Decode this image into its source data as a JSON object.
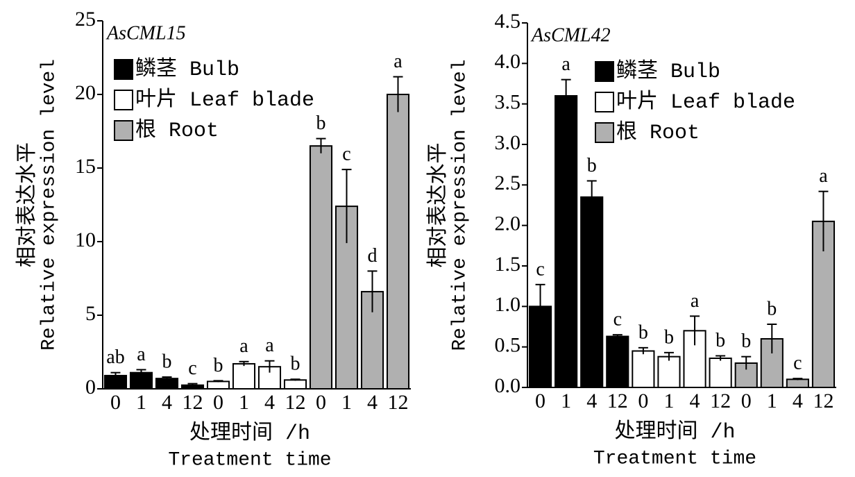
{
  "chart_data": [
    {
      "type": "bar",
      "title": "AsCML15",
      "ylabel": [
        "相对表达水平",
        "Relative expression level"
      ],
      "xlabel": [
        "处理时间 /h",
        "Treatment time"
      ],
      "categories": [
        "0",
        "1",
        "4",
        "12"
      ],
      "series": [
        {
          "name": "鳞茎 Bulb",
          "color": "#000000",
          "values": [
            0.9,
            1.1,
            0.7,
            0.25
          ],
          "errors": [
            0.2,
            0.2,
            0.1,
            0.1
          ],
          "letters": [
            "ab",
            "a",
            "b",
            "c"
          ]
        },
        {
          "name": "叶片 Leaf blade",
          "color": "#ffffff",
          "values": [
            0.5,
            1.7,
            1.5,
            0.6
          ],
          "errors": [
            0.05,
            0.15,
            0.4,
            0.05
          ],
          "letters": [
            "b",
            "a",
            "a",
            "b"
          ]
        },
        {
          "name": "根 Root",
          "color": "#b0b0b0",
          "values": [
            16.5,
            12.4,
            6.6,
            20
          ],
          "errors": [
            0.5,
            2.5,
            1.4,
            1.2
          ],
          "letters": [
            "b",
            "c",
            "d",
            "a"
          ]
        }
      ],
      "ylim": [
        0,
        25
      ],
      "yticks": [
        0,
        5,
        10,
        15,
        20,
        25
      ],
      "legend": "upper left"
    },
    {
      "type": "bar",
      "title": "AsCML42",
      "ylabel": [
        "相对表达水平",
        "Relative expression level"
      ],
      "xlabel": [
        "处理时间 /h",
        "Treatment time"
      ],
      "categories": [
        "0",
        "1",
        "4",
        "12"
      ],
      "series": [
        {
          "name": "鳞茎 Bulb",
          "color": "#000000",
          "values": [
            1.0,
            3.6,
            2.35,
            0.63
          ],
          "errors": [
            0.27,
            0.2,
            0.2,
            0.02
          ],
          "letters": [
            "c",
            "a",
            "b",
            "c"
          ]
        },
        {
          "name": "叶片 Leaf blade",
          "color": "#ffffff",
          "values": [
            0.45,
            0.38,
            0.7,
            0.36
          ],
          "errors": [
            0.04,
            0.05,
            0.18,
            0.03
          ],
          "letters": [
            "b",
            "b",
            "a",
            "b"
          ]
        },
        {
          "name": "根 Root",
          "color": "#b0b0b0",
          "values": [
            0.3,
            0.6,
            0.1,
            2.05
          ],
          "errors": [
            0.08,
            0.18,
            0.01,
            0.37
          ],
          "letters": [
            "b",
            "b",
            "c",
            "a"
          ]
        }
      ],
      "ylim": [
        0,
        4.5
      ],
      "yticks": [
        {
          "value": 0,
          "label": "0.0"
        },
        0.5,
        {
          "value": 1,
          "label": "1.0"
        },
        1.5,
        {
          "value": 2,
          "label": "2.0"
        },
        2.5,
        {
          "value": 3,
          "label": "3.0"
        },
        3.5,
        {
          "value": 4,
          "label": "4.0"
        },
        4.5
      ],
      "legend": "upper right"
    }
  ]
}
